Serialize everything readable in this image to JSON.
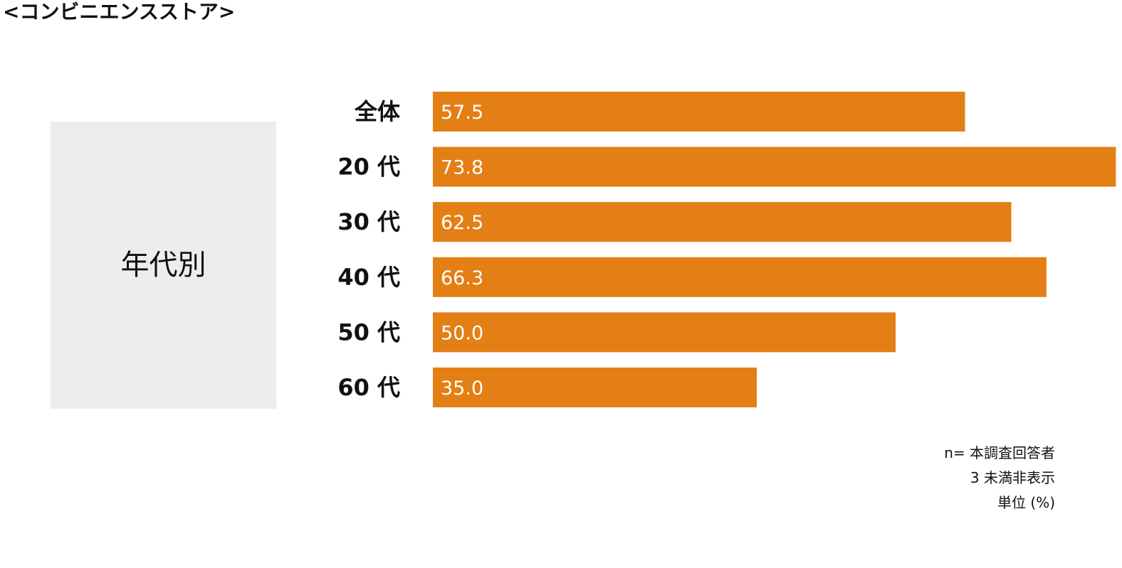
{
  "title": "<コンビニエンスストア>",
  "group_label": "年代別",
  "colors": {
    "bar": "#e37f15",
    "group_box": "#eceeee",
    "value_text": "#ffffff"
  },
  "notes": {
    "line1": "n= 本調査回答者",
    "line2": "3 未満非表示",
    "line3": "単位 (%)"
  },
  "chart_data": {
    "type": "bar",
    "orientation": "horizontal",
    "categories": [
      "全体",
      "20 代",
      "30 代",
      "40 代",
      "50 代",
      "60 代"
    ],
    "values": [
      57.5,
      73.8,
      62.5,
      66.3,
      50.0,
      35.0
    ],
    "value_labels": [
      "57.5",
      "73.8",
      "62.5",
      "66.3",
      "50.0",
      "35.0"
    ],
    "unit": "%",
    "grid": false,
    "legend": "none"
  }
}
